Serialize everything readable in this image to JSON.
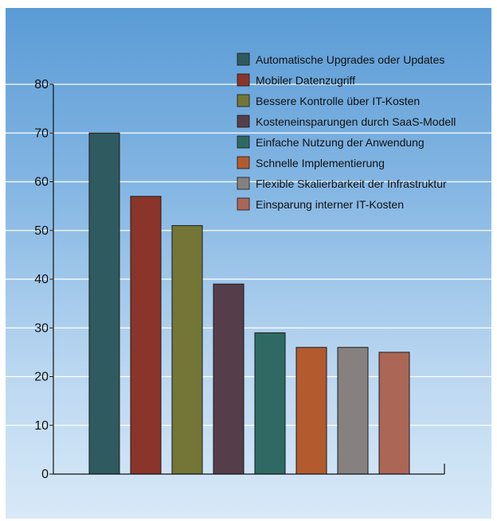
{
  "chart_data": {
    "type": "bar",
    "categories": [
      "Automatische Upgrades oder Updates",
      "Mobiler Datenzugriff",
      "Bessere Kontrolle über IT-Kosten",
      "Kosteneinsparungen durch SaaS-Modell",
      "Einfache Nutzung der Anwendung",
      "Schnelle Implementierung",
      "Flexible Skalierbarkeit der Infrastruktur",
      "Einsparung interner IT-Kosten"
    ],
    "values": [
      70,
      57,
      51,
      39,
      29,
      26,
      26,
      25
    ],
    "colors": [
      "#2f5a5f",
      "#8b3429",
      "#737636",
      "#553e4a",
      "#2e6a63",
      "#b35a2f",
      "#86817e",
      "#ab6656"
    ],
    "ylim": [
      0,
      80
    ],
    "yticks": [
      0,
      10,
      20,
      30,
      40,
      50,
      60,
      70,
      80
    ],
    "ytick_labels": [
      "0",
      "10",
      "20",
      "30",
      "40",
      "50",
      "60",
      "70",
      "80"
    ],
    "legend": [
      "Automatische Upgrades oder Updates",
      "Mobiler Datenzugriff",
      "Bessere Kontrolle über IT-Kosten",
      "Kosteneinsparungen durch SaaS-Modell",
      "Einfache Nutzung der Anwendung",
      "Schnelle Implementierung",
      "Flexible Skalierbarkeit der Infrastruktur",
      "Einsparung interner IT-Kosten"
    ],
    "legend_position": "top-right",
    "grid": true,
    "background": "#5a9bd5"
  }
}
